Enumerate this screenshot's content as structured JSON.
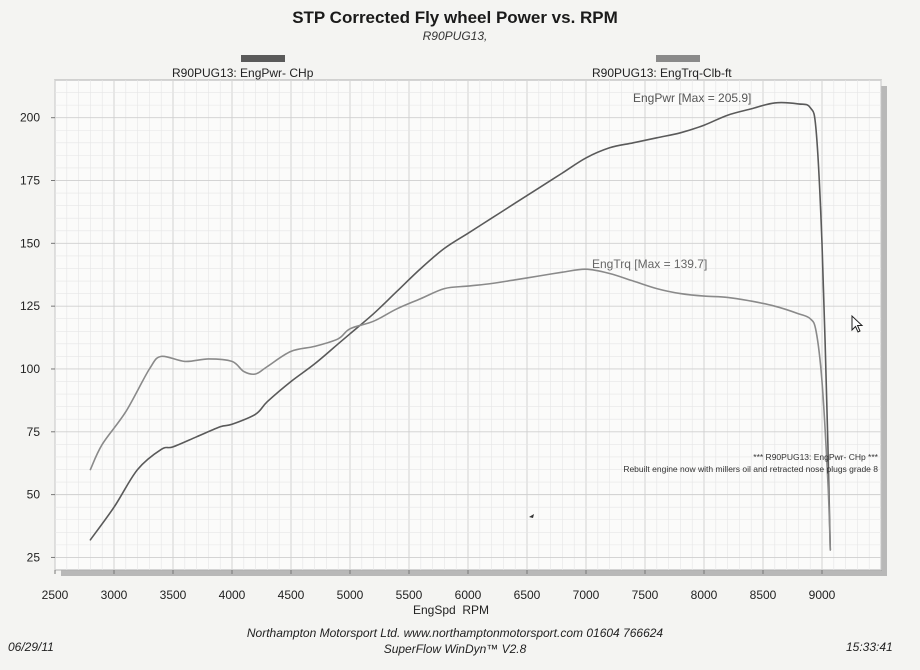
{
  "header": {
    "title": "STP Corrected Fly wheel Power vs. RPM",
    "subtitle": "R90PUG13,"
  },
  "legend": {
    "power_label": "R90PUG13: EngPwr- CHp",
    "torque_label": "R90PUG13: EngTrq-Clb-ft",
    "power_color": "#5a5a5a",
    "torque_color": "#8a8a8a"
  },
  "footer": {
    "date": "06/29/11",
    "time": "15:33:41",
    "line1": "Northampton Motorsport Ltd. www.northamptonmotorsport.com 01604 766624",
    "line2": "SuperFlow WinDyn™ V2.8"
  },
  "chart_data": {
    "type": "line",
    "title": "STP Corrected Fly wheel Power vs. RPM",
    "xlabel": "EngSpd  RPM",
    "ylabel": "",
    "xlim": [
      2500,
      9500
    ],
    "ylim": [
      20,
      215
    ],
    "x_ticks": [
      2500,
      3000,
      3500,
      4000,
      4500,
      5000,
      5500,
      6000,
      6500,
      7000,
      7500,
      8000,
      8500,
      9000
    ],
    "y_ticks": [
      25,
      50,
      75,
      100,
      125,
      150,
      175,
      200
    ],
    "grid": true,
    "series": [
      {
        "name": "R90PUG13: EngPwr- CHp",
        "color": "#5a5a5a",
        "annotation": "EngPwr [Max = 205.9]",
        "x": [
          2800,
          3000,
          3200,
          3400,
          3500,
          3700,
          3900,
          4000,
          4200,
          4300,
          4500,
          4700,
          4900,
          5000,
          5200,
          5400,
          5600,
          5800,
          6000,
          6200,
          6400,
          6600,
          6800,
          7000,
          7200,
          7400,
          7600,
          7800,
          8000,
          8200,
          8400,
          8600,
          8800,
          8900,
          8950,
          9000,
          9050,
          9070
        ],
        "values": [
          32,
          45,
          60,
          68,
          69,
          73,
          77,
          78,
          82,
          87,
          95,
          102,
          110,
          114,
          122,
          131,
          140,
          148,
          154,
          160,
          166,
          172,
          178,
          184,
          188,
          190,
          192,
          194,
          197,
          201,
          203.5,
          205.9,
          205.5,
          204,
          195,
          150,
          70,
          28
        ]
      },
      {
        "name": "R90PUG13: EngTrq-Clb-ft",
        "color": "#8a8a8a",
        "annotation": "EngTrq [Max = 139.7]",
        "x": [
          2800,
          2900,
          3100,
          3300,
          3400,
          3600,
          3800,
          4000,
          4100,
          4200,
          4300,
          4500,
          4700,
          4900,
          5000,
          5200,
          5400,
          5600,
          5800,
          6000,
          6200,
          6400,
          6600,
          6800,
          7000,
          7200,
          7400,
          7600,
          7800,
          8000,
          8200,
          8400,
          8600,
          8800,
          8900,
          8950,
          9000,
          9050,
          9070
        ],
        "values": [
          60,
          70,
          83,
          100,
          105,
          103,
          104,
          103,
          99,
          98,
          101,
          107,
          109,
          112,
          116,
          119,
          124,
          128,
          132,
          133,
          134,
          135.5,
          137,
          138.5,
          139.7,
          138,
          135,
          132,
          130,
          129,
          128.5,
          127,
          125,
          122,
          120,
          115,
          95,
          55,
          28
        ]
      }
    ],
    "annotations": [
      "*** R90PUG13: EngPwr- CHp  ***",
      "Rebuilt engine now with millers oil and retracted nose plugs grade 8"
    ]
  }
}
